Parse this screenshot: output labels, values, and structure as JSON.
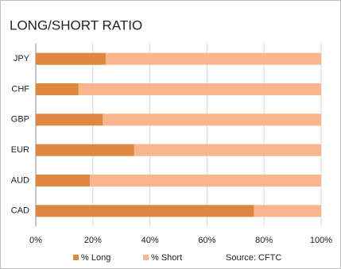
{
  "chart_data": {
    "type": "stacked_barh",
    "title": "LONG/SHORT RATIO",
    "categories": [
      "JPY",
      "CHF",
      "GBP",
      "EUR",
      "AUD",
      "CAD"
    ],
    "series": [
      {
        "name": "% Long",
        "color": "#e0873f",
        "values": [
          24.5,
          15,
          23.5,
          34.5,
          19,
          76.5
        ]
      },
      {
        "name": "% Short",
        "color": "#f9b58e",
        "values": [
          75.5,
          85,
          76.5,
          65.5,
          81,
          23.5
        ]
      }
    ],
    "xlim": [
      0,
      100
    ],
    "xticks": [
      {
        "value": 0,
        "label": "0%"
      },
      {
        "value": 20,
        "label": "20%"
      },
      {
        "value": 40,
        "label": "40%"
      },
      {
        "value": 60,
        "label": "60%"
      },
      {
        "value": 80,
        "label": "80%"
      },
      {
        "value": 100,
        "label": "100%"
      }
    ],
    "grid": true,
    "source": "Source: CFTC"
  }
}
